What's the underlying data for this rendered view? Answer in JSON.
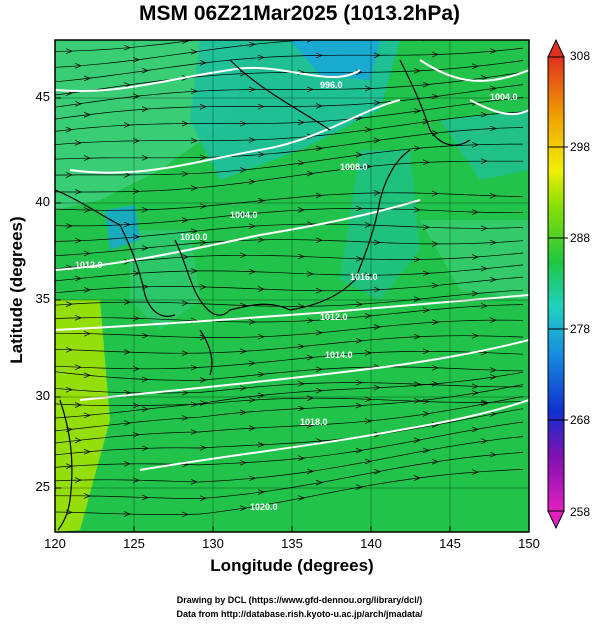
{
  "title": "MSM 06Z21Mar2025 (1013.2hPa)",
  "axes": {
    "xlabel": "Longitude (degrees)",
    "ylabel": "Latitude (degrees)",
    "xticks": [
      "120",
      "125",
      "130",
      "135",
      "140",
      "145",
      "150"
    ],
    "yticks": [
      "25",
      "30",
      "35",
      "40",
      "45"
    ]
  },
  "colorbar": {
    "ticks": [
      "258",
      "268",
      "278",
      "288",
      "298",
      "308"
    ]
  },
  "contour_labels": [
    "1012.0",
    "1010.0",
    "1012.0",
    "1014.0",
    "1018.0",
    "1020.0",
    "1016.0",
    "1008.0",
    "1004.0",
    "1004.0",
    "996.0"
  ],
  "credits": {
    "line1": "Drawing by DCL (https://www.gfd-dennou.org/library/dcl/)",
    "line2": "Data from http://database.rish.kyoto-u.ac.jp/arch/jmadata/"
  },
  "colors": {
    "ocean_main": "#22c34a",
    "sea_cool": "#1fbfa0",
    "cold_area": "#18a6d8",
    "land_warm": "#a8e400",
    "contour": "#ffffff",
    "coastline": "#000000"
  }
}
